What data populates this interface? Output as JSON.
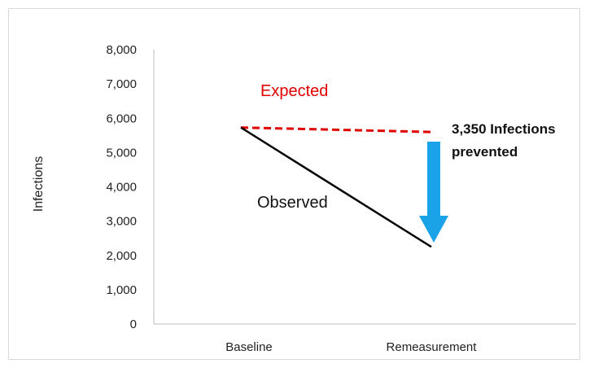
{
  "chart_data": {
    "type": "line",
    "categories": [
      "Baseline",
      "Remeasurement"
    ],
    "ylabel": "Infections",
    "ylim": [
      0,
      8000
    ],
    "yticks": [
      0,
      1000,
      2000,
      3000,
      4000,
      5000,
      6000,
      7000,
      8000
    ],
    "ytick_labels": [
      "0",
      "1,000",
      "2,000",
      "3,000",
      "4,000",
      "5,000",
      "6,000",
      "7,000",
      "8,000"
    ],
    "grid": false,
    "series": [
      {
        "name": "Expected",
        "values": [
          5730,
          5600
        ],
        "color": "#e00000",
        "style": "dashed"
      },
      {
        "name": "Observed",
        "values": [
          5730,
          2250
        ],
        "color": "#000000",
        "style": "solid"
      }
    ],
    "annotations": {
      "expected_label": "Expected",
      "observed_label": "Observed",
      "prevented_line1": "3,350 Infections",
      "prevented_line2": "prevented",
      "arrow_color": "#1aa3e8"
    }
  }
}
